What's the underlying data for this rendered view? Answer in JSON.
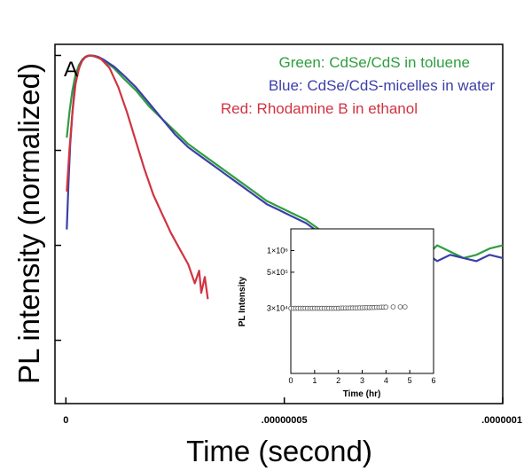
{
  "chart_data": [
    {
      "type": "line",
      "panel_label": "A",
      "title": "",
      "xlabel": "Time (second)",
      "ylabel": "PL intensity (normalized)",
      "xlim": [
        -2.5e-09,
        1e-07
      ],
      "ylim": [
        -1.1,
        0.035
      ],
      "x_tick_values": [
        0,
        5e-08,
        1e-07
      ],
      "x_tick_labels": [
        "0",
        ".00000005",
        ".0000001"
      ],
      "y_tick_values": [
        0,
        -0.3,
        -0.6,
        -0.9
      ],
      "y_tick_labels": [],
      "grid": false,
      "legend_position": "top-right",
      "series": [
        {
          "name": "Green: CdSe/CdS in toluene",
          "color": "#2e9e3e",
          "x": [
            2e-10,
            8e-10,
            1.5e-09,
            2.2e-09,
            3e-09,
            3.8e-09,
            4.5e-09,
            5e-09,
            5.5e-09,
            6.5e-09,
            7.5e-09,
            9e-09,
            1.1e-08,
            1.3e-08,
            1.6e-08,
            1.9e-08,
            2.2e-08,
            2.5e-08,
            2.8e-08,
            3.1e-08,
            3.4e-08,
            3.7e-08,
            4e-08,
            4.3e-08,
            4.6e-08,
            4.9e-08,
            5.2e-08,
            5.5e-08,
            5.8e-08,
            6.1e-08,
            6.4e-08,
            6.7e-08,
            7e-08,
            7.3e-08,
            7.6e-08,
            7.9e-08,
            8.2e-08,
            8.5e-08,
            8.8e-08,
            9.1e-08,
            9.4e-08,
            9.7e-08,
            1e-07
          ],
          "y": [
            -0.26,
            -0.18,
            -0.11,
            -0.06,
            -0.03,
            -0.012,
            -0.004,
            -0.001,
            0,
            -0.003,
            -0.008,
            -0.02,
            -0.04,
            -0.07,
            -0.11,
            -0.16,
            -0.2,
            -0.24,
            -0.28,
            -0.31,
            -0.34,
            -0.37,
            -0.4,
            -0.43,
            -0.46,
            -0.48,
            -0.5,
            -0.52,
            -0.55,
            -0.56,
            -0.57,
            -0.58,
            -0.61,
            -0.6,
            -0.63,
            -0.62,
            -0.64,
            -0.6,
            -0.62,
            -0.64,
            -0.63,
            -0.61,
            -0.6
          ]
        },
        {
          "name": "Blue: CdSe/CdS-micelles in water",
          "color": "#3c3fa8",
          "x": [
            2e-10,
            6e-10,
            1e-09,
            1.5e-09,
            2e-09,
            2.8e-09,
            3.5e-09,
            4.5e-09,
            5.5e-09,
            6.5e-09,
            7.5e-09,
            8.5e-09,
            1.1e-08,
            1.3e-08,
            1.6e-08,
            1.9e-08,
            2.2e-08,
            2.5e-08,
            2.8e-08,
            3.1e-08,
            3.4e-08,
            3.7e-08,
            4e-08,
            4.3e-08,
            4.6e-08,
            4.9e-08,
            5.2e-08,
            5.5e-08,
            5.8e-08,
            6.1e-08,
            6.4e-08,
            6.7e-08,
            7e-08,
            7.3e-08,
            7.6e-08,
            7.9e-08,
            8.2e-08,
            8.5e-08,
            8.8e-08,
            9.1e-08,
            9.4e-08,
            9.7e-08,
            1e-07
          ],
          "y": [
            -0.55,
            -0.4,
            -0.28,
            -0.18,
            -0.1,
            -0.05,
            -0.02,
            -0.005,
            0,
            -0.001,
            -0.005,
            -0.012,
            -0.035,
            -0.06,
            -0.1,
            -0.15,
            -0.2,
            -0.25,
            -0.29,
            -0.32,
            -0.35,
            -0.38,
            -0.41,
            -0.44,
            -0.47,
            -0.49,
            -0.51,
            -0.53,
            -0.56,
            -0.57,
            -0.6,
            -0.59,
            -0.62,
            -0.61,
            -0.63,
            -0.64,
            -0.62,
            -0.65,
            -0.63,
            -0.64,
            -0.65,
            -0.63,
            -0.64
          ]
        },
        {
          "name": "Red: Rhodamine B in ethanol",
          "color": "#d03340",
          "x": [
            2e-10,
            8e-10,
            1.5e-09,
            2.2e-09,
            3e-09,
            3.8e-09,
            4.5e-09,
            5.5e-09,
            6.5e-09,
            8e-09,
            1e-08,
            1.2e-08,
            1.4e-08,
            1.6e-08,
            1.8e-08,
            2e-08,
            2.2e-08,
            2.4e-08,
            2.6e-08,
            2.8e-08,
            2.95e-08,
            3.05e-08,
            3.1e-08,
            3.18e-08,
            3.25e-08
          ],
          "y": [
            -0.43,
            -0.3,
            -0.18,
            -0.09,
            -0.04,
            -0.015,
            -0.004,
            0,
            -0.002,
            -0.01,
            -0.04,
            -0.1,
            -0.18,
            -0.27,
            -0.36,
            -0.44,
            -0.5,
            -0.56,
            -0.61,
            -0.66,
            -0.72,
            -0.68,
            -0.75,
            -0.7,
            -0.77
          ]
        }
      ]
    },
    {
      "type": "scatter",
      "title": "",
      "xlabel": "Time (hr)",
      "ylabel": "PL Intensity",
      "xlim": [
        0,
        6
      ],
      "ylim": [
        0,
        100
      ],
      "x_tick_values": [
        0,
        1,
        2,
        3,
        4,
        5,
        6
      ],
      "x_tick_labels": [
        "0",
        "1",
        "2",
        "3",
        "4",
        "5",
        "6"
      ],
      "y_tick_values": [
        45,
        70,
        85
      ],
      "y_tick_labels": [
        "3×10⁴",
        "5×10⁵",
        "1×10⁶"
      ],
      "grid": false,
      "series": [
        {
          "marker": "open-circle",
          "color": "#555555",
          "x": [
            0,
            0.1,
            0.2,
            0.3,
            0.4,
            0.5,
            0.6,
            0.7,
            0.8,
            0.9,
            1,
            1.1,
            1.2,
            1.3,
            1.4,
            1.5,
            1.6,
            1.7,
            1.8,
            1.9,
            2,
            2.1,
            2.2,
            2.3,
            2.4,
            2.5,
            2.6,
            2.7,
            2.8,
            2.9,
            3,
            3.1,
            3.2,
            3.3,
            3.4,
            3.5,
            3.6,
            3.7,
            3.8,
            3.9,
            4,
            4.3,
            4.6,
            4.8
          ],
          "y": [
            45,
            45,
            45,
            45,
            45,
            45,
            45,
            45,
            45,
            45,
            45,
            45,
            45,
            45,
            45,
            45,
            45,
            45,
            45,
            45,
            45,
            45.2,
            45.2,
            45.2,
            45.2,
            45.3,
            45.3,
            45.3,
            45.3,
            45.4,
            45.4,
            45.5,
            45.5,
            45.5,
            45.6,
            45.6,
            45.7,
            45.7,
            45.8,
            45.8,
            45.9,
            46,
            46,
            46
          ]
        }
      ]
    }
  ]
}
